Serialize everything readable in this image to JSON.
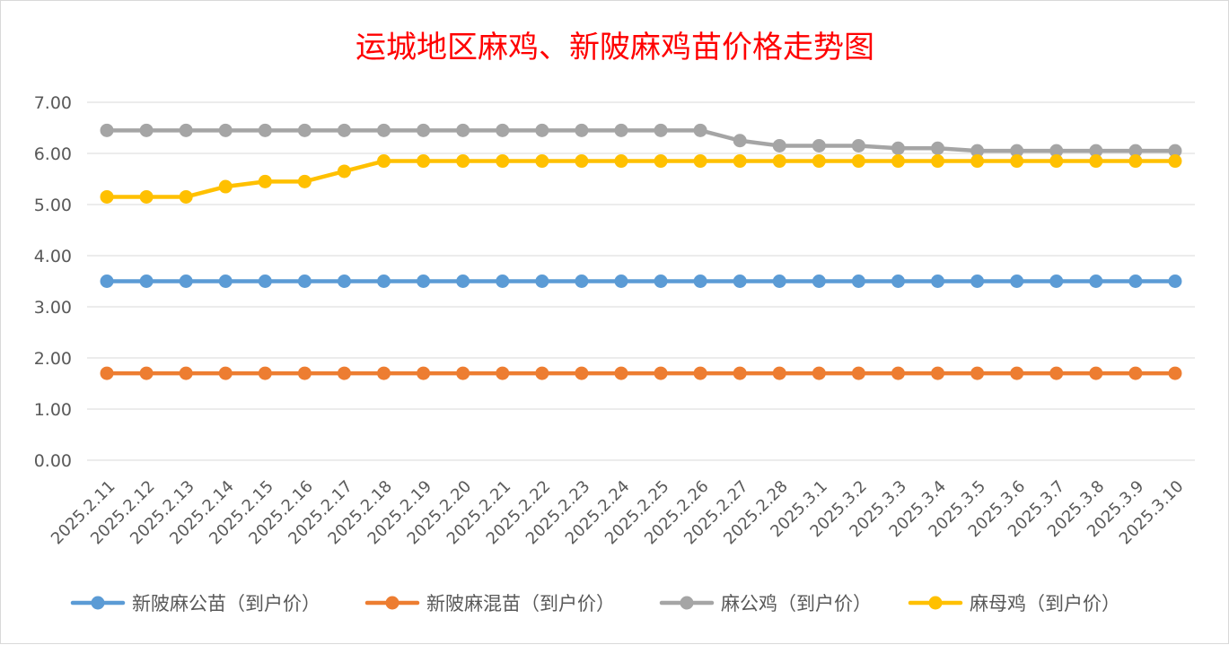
{
  "chart_data": {
    "type": "line",
    "title": "运城地区麻鸡、新陂麻鸡苗价格走势图",
    "xlabel": "",
    "ylabel": "",
    "ylim": [
      0,
      7
    ],
    "ytick_labels": [
      "0.00",
      "1.00",
      "2.00",
      "3.00",
      "4.00",
      "5.00",
      "6.00",
      "7.00"
    ],
    "grid": true,
    "legend_position": "bottom",
    "categories": [
      "2025.2.11",
      "2025.2.12",
      "2025.2.13",
      "2025.2.14",
      "2025.2.15",
      "2025.2.16",
      "2025.2.17",
      "2025.2.18",
      "2025.2.19",
      "2025.2.20",
      "2025.2.21",
      "2025.2.22",
      "2025.2.23",
      "2025.2.24",
      "2025.2.25",
      "2025.2.26",
      "2025.2.27",
      "2025.2.28",
      "2025.3.1",
      "2025.3.2",
      "2025.3.3",
      "2025.3.4",
      "2025.3.5",
      "2025.3.6",
      "2025.3.7",
      "2025.3.8",
      "2025.3.9",
      "2025.3.10"
    ],
    "series": [
      {
        "name": "新陂麻公苗（到户价）",
        "color": "#5b9bd5",
        "values": [
          3.5,
          3.5,
          3.5,
          3.5,
          3.5,
          3.5,
          3.5,
          3.5,
          3.5,
          3.5,
          3.5,
          3.5,
          3.5,
          3.5,
          3.5,
          3.5,
          3.5,
          3.5,
          3.5,
          3.5,
          3.5,
          3.5,
          3.5,
          3.5,
          3.5,
          3.5,
          3.5,
          3.5
        ]
      },
      {
        "name": "新陂麻混苗（到户价）",
        "color": "#ed7d31",
        "values": [
          1.7,
          1.7,
          1.7,
          1.7,
          1.7,
          1.7,
          1.7,
          1.7,
          1.7,
          1.7,
          1.7,
          1.7,
          1.7,
          1.7,
          1.7,
          1.7,
          1.7,
          1.7,
          1.7,
          1.7,
          1.7,
          1.7,
          1.7,
          1.7,
          1.7,
          1.7,
          1.7,
          1.7
        ]
      },
      {
        "name": "麻公鸡（到户价）",
        "color": "#a5a5a5",
        "values": [
          6.45,
          6.45,
          6.45,
          6.45,
          6.45,
          6.45,
          6.45,
          6.45,
          6.45,
          6.45,
          6.45,
          6.45,
          6.45,
          6.45,
          6.45,
          6.45,
          6.25,
          6.15,
          6.15,
          6.15,
          6.1,
          6.1,
          6.05,
          6.05,
          6.05,
          6.05,
          6.05,
          6.05
        ]
      },
      {
        "name": "麻母鸡（到户价）",
        "color": "#ffc000",
        "values": [
          5.15,
          5.15,
          5.15,
          5.35,
          5.45,
          5.45,
          5.65,
          5.85,
          5.85,
          5.85,
          5.85,
          5.85,
          5.85,
          5.85,
          5.85,
          5.85,
          5.85,
          5.85,
          5.85,
          5.85,
          5.85,
          5.85,
          5.85,
          5.85,
          5.85,
          5.85,
          5.85,
          5.85
        ]
      }
    ]
  }
}
